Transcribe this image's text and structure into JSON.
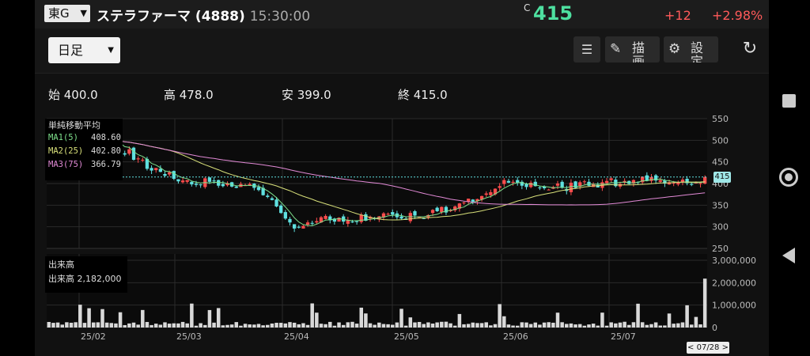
{
  "header": {
    "market": "東G",
    "title": "ステラファーマ (4888)",
    "time": "15:30:00",
    "price_flag": "C",
    "price": "415",
    "change": "+12",
    "change_pct": "+2.98%"
  },
  "toolbar": {
    "period": "日足",
    "draw_label": "描画",
    "settings_label": "設定"
  },
  "ohlc": {
    "open": "始 400.0",
    "high": "高 478.0",
    "low": "安 399.0",
    "close": "終 415.0"
  },
  "legend": {
    "title": "単純移動平均",
    "ma": [
      {
        "label": "MA1(5)",
        "value": "408.60",
        "color": "#7ee08c"
      },
      {
        "label": "MA2(25)",
        "value": "402.80",
        "color": "#d8e07a"
      },
      {
        "label": "MA3(75)",
        "value": "366.79",
        "color": "#e28ad6"
      }
    ]
  },
  "volume_legend": {
    "title": "出来高",
    "label": "出来高",
    "value": "2,182,000"
  },
  "date_badge": "< 07/28 >",
  "price_tag": "415",
  "colors": {
    "up": "#ff4d4d",
    "down": "#5fe0e0",
    "volume": "#d9d9d9"
  },
  "chart_data": {
    "type": "candlestick",
    "price_axis": {
      "ticks": [
        "550",
        "500",
        "450",
        "400",
        "350",
        "300",
        "250"
      ],
      "range": [
        250,
        550
      ]
    },
    "volume_axis": {
      "ticks": [
        "3,000,000",
        "2,000,000",
        "1,000,000",
        "0"
      ],
      "range": [
        0,
        3000000
      ]
    },
    "x_labels": [
      "25/02",
      "25/03",
      "25/04",
      "25/05",
      "25/06",
      "25/07"
    ],
    "ohlc": [],
    "volume": [],
    "ma1": [],
    "ma2": [],
    "ma3": []
  }
}
